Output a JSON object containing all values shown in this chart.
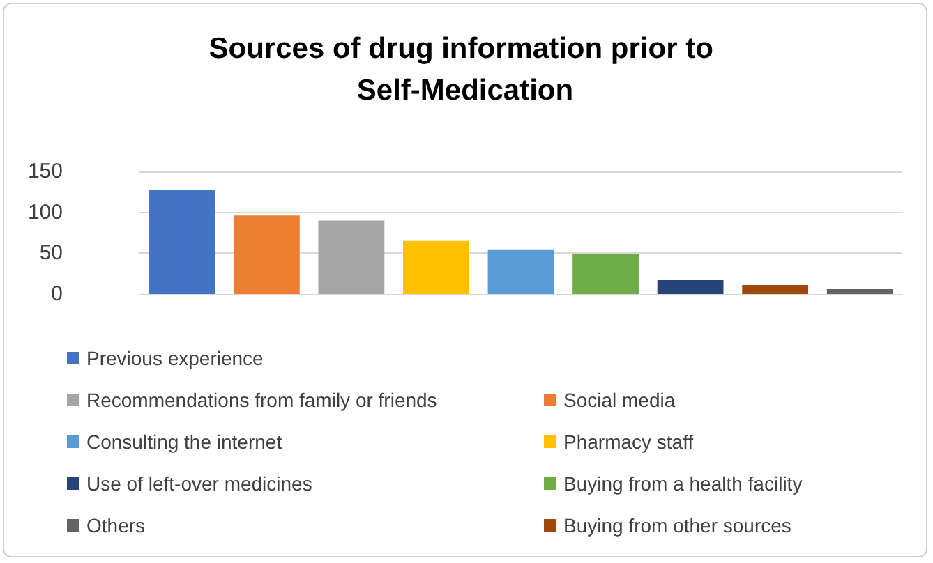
{
  "chart_data": {
    "type": "bar",
    "title": "Sources of drug information prior to Self-Medication",
    "categories": [
      null,
      null,
      null,
      null,
      null,
      null,
      null,
      null,
      null
    ],
    "series": [
      {
        "name": "Previous experience",
        "color": "#4472c4",
        "values": [
          127,
          null,
          null,
          null,
          null,
          null,
          null,
          null,
          null
        ]
      },
      {
        "name": "Social media",
        "color": "#ed7d31",
        "values": [
          null,
          96,
          null,
          null,
          null,
          null,
          null,
          null,
          null
        ]
      },
      {
        "name": "Recommendations from family or friends",
        "color": "#a5a5a5",
        "values": [
          null,
          null,
          90,
          null,
          null,
          null,
          null,
          null,
          null
        ]
      },
      {
        "name": "Pharmacy staff",
        "color": "#ffc000",
        "values": [
          null,
          null,
          null,
          65,
          null,
          null,
          null,
          null,
          null
        ]
      },
      {
        "name": "Consulting the internet",
        "color": "#5b9bd5",
        "values": [
          null,
          null,
          null,
          null,
          54,
          null,
          null,
          null,
          null
        ]
      },
      {
        "name": "Buying from a health facility",
        "color": "#70ad47",
        "values": [
          null,
          null,
          null,
          null,
          null,
          49,
          null,
          null,
          null
        ]
      },
      {
        "name": "Use of left-over medicines",
        "color": "#264478",
        "values": [
          null,
          null,
          null,
          null,
          null,
          null,
          17,
          null,
          null
        ]
      },
      {
        "name": "Buying from other sources",
        "color": "#9e480e",
        "values": [
          null,
          null,
          null,
          null,
          null,
          null,
          null,
          11,
          null
        ]
      },
      {
        "name": "Others",
        "color": "#636363",
        "values": [
          null,
          null,
          null,
          null,
          null,
          null,
          null,
          null,
          6
        ]
      }
    ],
    "ylim": [
      0,
      150
    ],
    "yticks": [
      0,
      50,
      100,
      150
    ],
    "grid": "y",
    "legend": "bottom"
  }
}
